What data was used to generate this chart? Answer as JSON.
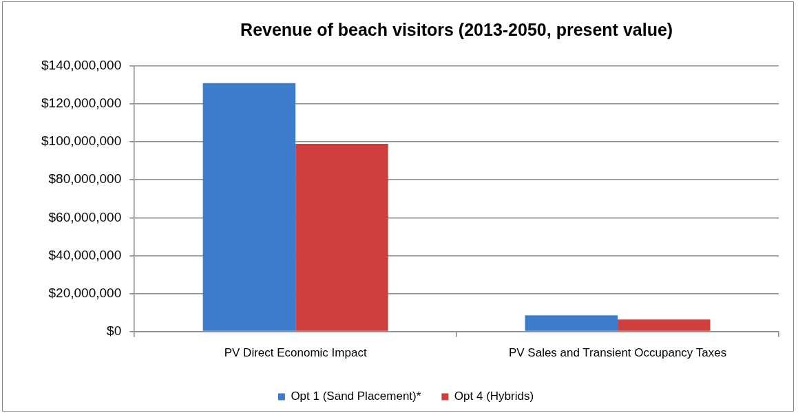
{
  "chart_data": {
    "type": "bar",
    "title": "Revenue of beach visitors (2013-2050, present value)",
    "categories": [
      "PV Direct Economic Impact",
      "PV Sales and Transient Occupancy Taxes"
    ],
    "series": [
      {
        "name": "Opt 1 (Sand Placement)*",
        "color": "#3d7ccc",
        "values": [
          131000000,
          8500000
        ]
      },
      {
        "name": "Opt 4 (Hybrids)",
        "color": "#cf3f3d",
        "values": [
          99000000,
          6300000
        ]
      }
    ],
    "ylim": [
      0,
      140000000
    ],
    "yticks": [
      {
        "value": 0,
        "label": "$0"
      },
      {
        "value": 20000000,
        "label": "$20,000,000"
      },
      {
        "value": 40000000,
        "label": "$40,000,000"
      },
      {
        "value": 60000000,
        "label": "$60,000,000"
      },
      {
        "value": 80000000,
        "label": "$80,000,000"
      },
      {
        "value": 100000000,
        "label": "$100,000,000"
      },
      {
        "value": 120000000,
        "label": "$120,000,000"
      },
      {
        "value": 140000000,
        "label": "$140,000,000"
      }
    ],
    "grid": "y",
    "legend": "bottom"
  }
}
